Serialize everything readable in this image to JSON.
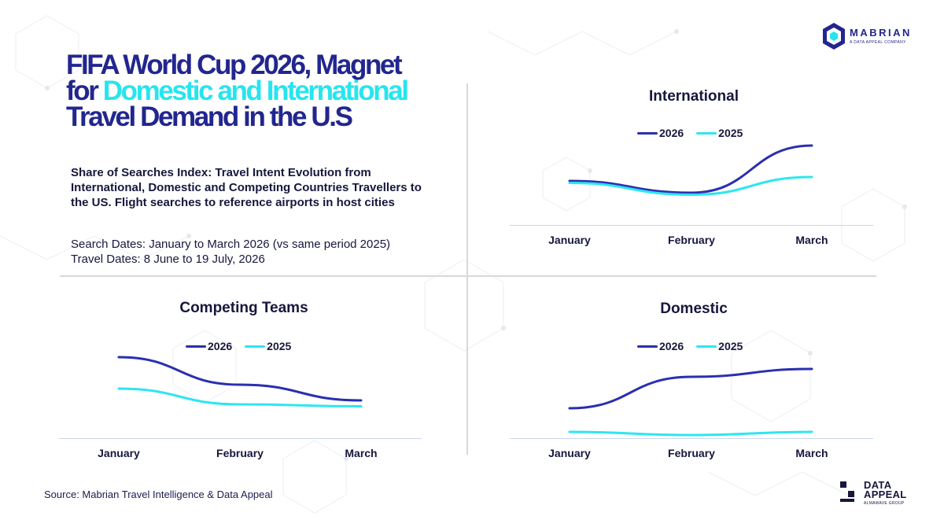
{
  "title": {
    "part1": "FIFA World Cup 2026, Magnet for ",
    "highlight": "Domestic and International",
    "part2": " Travel Demand in the U.S"
  },
  "subtitle": "Share of Searches Index: Travel Intent Evolution from International, Domestic and Competing Countries Travellers to the US. Flight searches to reference airports in host cities",
  "search_dates": "Search Dates: January to March 2026 (vs same period 2025)",
  "travel_dates": "Travel Dates: 8 June to 19 July, 2026",
  "source": "Source: Mabrian Travel Intelligence & Data Appeal",
  "logos": {
    "mabrian": {
      "name": "MABRIAN",
      "tagline": "A DATA APPEAL COMPANY"
    },
    "dataappeal": {
      "line1": "DATA",
      "line2": "APPEAL",
      "tagline": "ALMAWAVE GROUP"
    }
  },
  "colors": {
    "series_2026": "#2a2fb0",
    "series_2025": "#2ee6f0",
    "highlight": "#27e5ee",
    "title": "#22268e"
  },
  "chart_data": [
    {
      "type": "line",
      "title": "International",
      "categories": [
        "January",
        "February",
        "March"
      ],
      "series": [
        {
          "name": "2026",
          "values": [
            54,
            51,
            63
          ]
        },
        {
          "name": "2025",
          "values": [
            53.5,
            50.5,
            55
          ]
        }
      ],
      "ylim": [
        40,
        70
      ],
      "grid": false,
      "legend": "top-center"
    },
    {
      "type": "line",
      "title": "Competing Teams",
      "categories": [
        "January",
        "February",
        "March"
      ],
      "series": [
        {
          "name": "2026",
          "values": [
            63,
            56,
            52
          ]
        },
        {
          "name": "2025",
          "values": [
            55,
            51,
            50.5
          ]
        }
      ],
      "ylim": [
        40,
        70
      ],
      "grid": false,
      "legend": "top-center"
    },
    {
      "type": "line",
      "title": "Domestic",
      "categories": [
        "January",
        "February",
        "March"
      ],
      "series": [
        {
          "name": "2026",
          "values": [
            50,
            58,
            60
          ]
        },
        {
          "name": "2025",
          "values": [
            44,
            43.2,
            44
          ]
        }
      ],
      "ylim": [
        40,
        70
      ],
      "grid": false,
      "legend": "top-center"
    }
  ]
}
